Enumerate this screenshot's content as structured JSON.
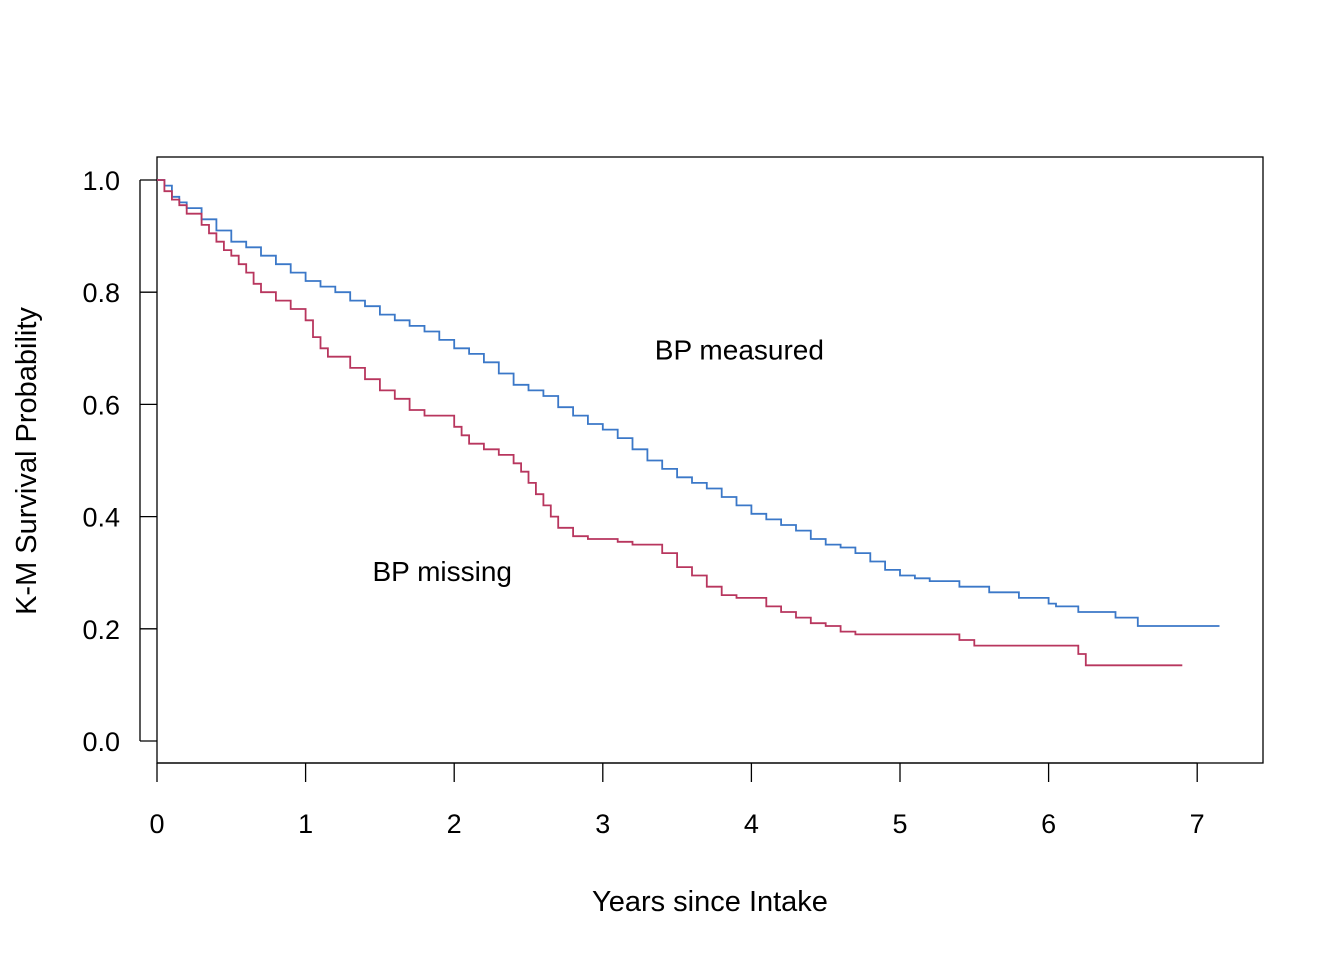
{
  "chart_data": {
    "type": "line",
    "step": true,
    "title": "",
    "xlabel": "Years since Intake",
    "ylabel": "K-M Survival Probability",
    "xlim": [
      0,
      7.2
    ],
    "ylim": [
      0,
      1.0
    ],
    "x_ticks": [
      0,
      1,
      2,
      3,
      4,
      5,
      6,
      7
    ],
    "x_tick_labels": [
      "0",
      "1",
      "2",
      "3",
      "4",
      "5",
      "6",
      "7"
    ],
    "y_ticks": [
      0.0,
      0.2,
      0.4,
      0.6,
      0.8,
      1.0
    ],
    "y_tick_labels": [
      "0.0",
      "0.2",
      "0.4",
      "0.6",
      "0.8",
      "1.0"
    ],
    "grid": false,
    "legend": "none",
    "annotations": [
      {
        "text": "BP measured",
        "x": 3.35,
        "y": 0.68
      },
      {
        "text": "BP missing",
        "x": 1.45,
        "y": 0.285
      }
    ],
    "series": [
      {
        "color": "#3b78c8",
        "x": [
          0,
          0.05,
          0.1,
          0.15,
          0.2,
          0.3,
          0.4,
          0.5,
          0.6,
          0.7,
          0.8,
          0.9,
          1.0,
          1.1,
          1.2,
          1.3,
          1.4,
          1.5,
          1.6,
          1.7,
          1.8,
          1.9,
          2.0,
          2.1,
          2.2,
          2.3,
          2.4,
          2.5,
          2.6,
          2.7,
          2.8,
          2.9,
          3.0,
          3.1,
          3.2,
          3.3,
          3.4,
          3.5,
          3.6,
          3.7,
          3.8,
          3.9,
          4.0,
          4.1,
          4.2,
          4.3,
          4.4,
          4.5,
          4.6,
          4.7,
          4.8,
          4.9,
          5.0,
          5.1,
          5.2,
          5.4,
          5.6,
          5.8,
          6.0,
          6.05,
          6.2,
          6.45,
          6.6,
          7.15
        ],
        "y": [
          1.0,
          0.99,
          0.97,
          0.96,
          0.95,
          0.93,
          0.91,
          0.89,
          0.88,
          0.865,
          0.85,
          0.835,
          0.82,
          0.81,
          0.8,
          0.785,
          0.775,
          0.76,
          0.75,
          0.74,
          0.73,
          0.715,
          0.7,
          0.69,
          0.675,
          0.655,
          0.635,
          0.625,
          0.615,
          0.595,
          0.58,
          0.565,
          0.555,
          0.54,
          0.52,
          0.5,
          0.485,
          0.47,
          0.46,
          0.45,
          0.435,
          0.42,
          0.405,
          0.395,
          0.385,
          0.375,
          0.36,
          0.35,
          0.345,
          0.335,
          0.32,
          0.305,
          0.295,
          0.29,
          0.285,
          0.275,
          0.265,
          0.255,
          0.245,
          0.24,
          0.23,
          0.22,
          0.205,
          0.205
        ]
      },
      {
        "color": "#b8365e",
        "x": [
          0,
          0.05,
          0.1,
          0.15,
          0.2,
          0.3,
          0.35,
          0.4,
          0.45,
          0.5,
          0.55,
          0.6,
          0.65,
          0.7,
          0.8,
          0.9,
          1.0,
          1.05,
          1.1,
          1.15,
          1.3,
          1.4,
          1.5,
          1.6,
          1.7,
          1.8,
          2.0,
          2.05,
          2.1,
          2.2,
          2.3,
          2.4,
          2.45,
          2.5,
          2.55,
          2.6,
          2.65,
          2.7,
          2.8,
          2.9,
          3.1,
          3.2,
          3.4,
          3.5,
          3.6,
          3.7,
          3.8,
          3.9,
          4.1,
          4.2,
          4.3,
          4.4,
          4.5,
          4.6,
          4.7,
          5.0,
          5.3,
          5.4,
          5.5,
          5.7,
          6.0,
          6.2,
          6.25,
          6.9
        ],
        "y": [
          1.0,
          0.98,
          0.965,
          0.955,
          0.94,
          0.92,
          0.905,
          0.89,
          0.875,
          0.865,
          0.85,
          0.835,
          0.815,
          0.8,
          0.785,
          0.77,
          0.75,
          0.72,
          0.7,
          0.685,
          0.665,
          0.645,
          0.625,
          0.61,
          0.59,
          0.58,
          0.56,
          0.545,
          0.53,
          0.52,
          0.51,
          0.495,
          0.48,
          0.46,
          0.44,
          0.42,
          0.4,
          0.38,
          0.365,
          0.36,
          0.355,
          0.35,
          0.335,
          0.31,
          0.295,
          0.275,
          0.26,
          0.255,
          0.24,
          0.23,
          0.22,
          0.21,
          0.205,
          0.195,
          0.19,
          0.19,
          0.19,
          0.18,
          0.17,
          0.17,
          0.17,
          0.155,
          0.135,
          0.135
        ]
      }
    ]
  }
}
